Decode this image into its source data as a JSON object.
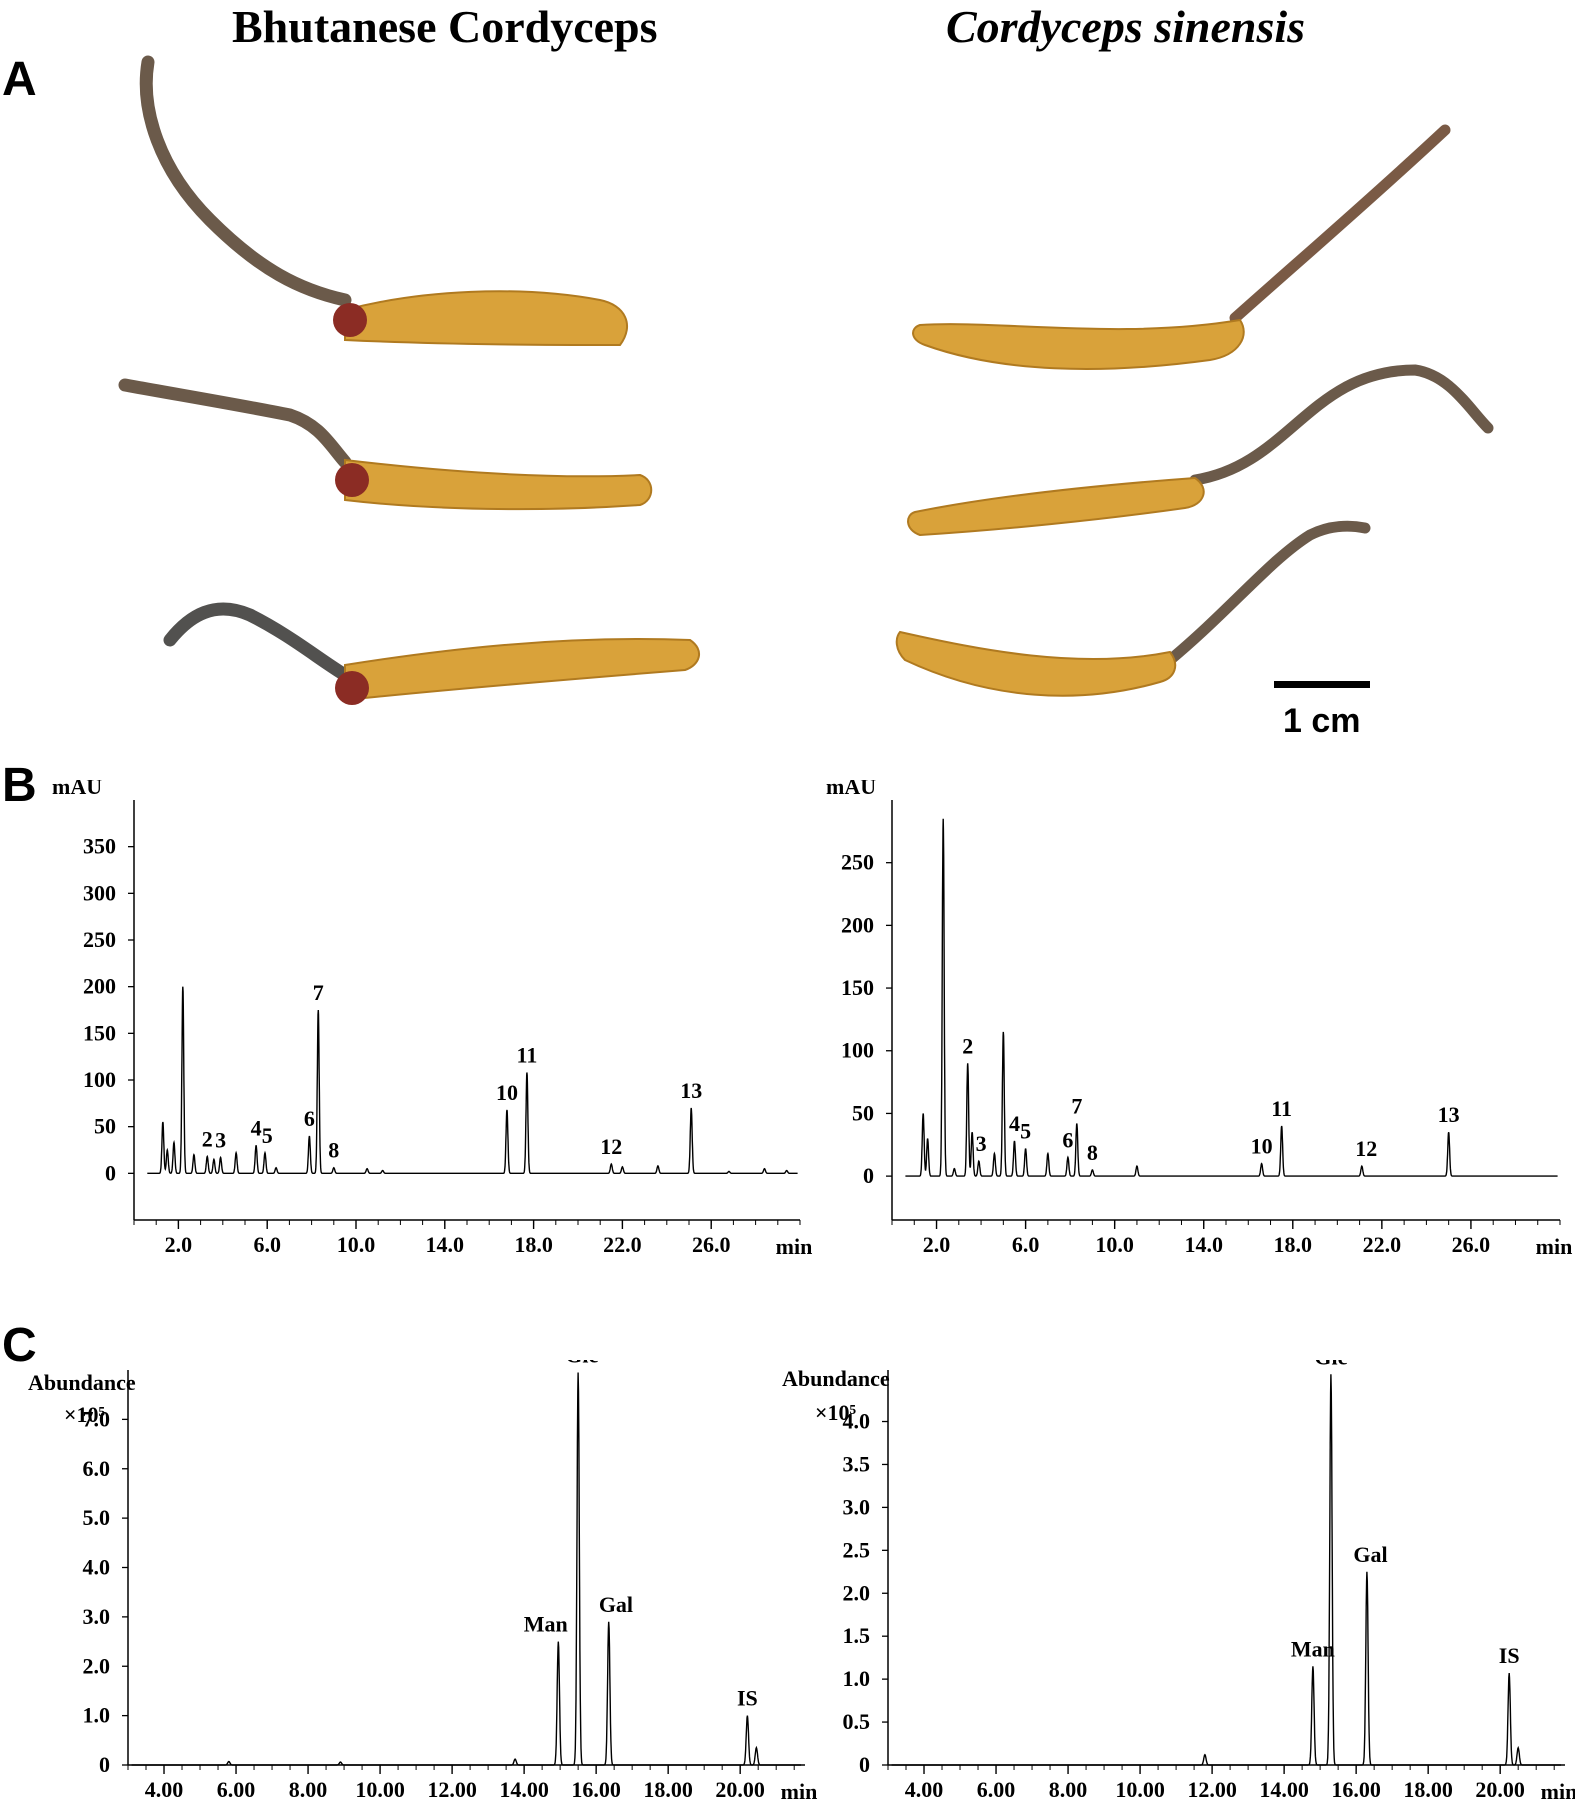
{
  "figure": {
    "panel_labels": [
      "A",
      "B",
      "C"
    ],
    "left_title": "Bhutanese Cordyceps",
    "right_title": "Cordyceps sinensis",
    "scale_bar_label": "1 cm",
    "specimen_colors": {
      "body": "#d9a23a",
      "stroma": "#6b5a4a",
      "tip": "#8b2c24"
    }
  },
  "chart_data": [
    {
      "id": "B-left",
      "type": "line",
      "ylabel": "mAU",
      "xunit": "min",
      "xlim": [
        0,
        30
      ],
      "ylim": [
        -50,
        400
      ],
      "xticks": [
        "2.0",
        "6.0",
        "10.0",
        "14.0",
        "18.0",
        "22.0",
        "26.0"
      ],
      "xtick_values": [
        2,
        6,
        10,
        14,
        18,
        22,
        26
      ],
      "yticks": [
        "0",
        "50",
        "100",
        "150",
        "200",
        "250",
        "300",
        "350"
      ],
      "ytick_values": [
        0,
        50,
        100,
        150,
        200,
        250,
        300,
        350
      ],
      "peaks": [
        [
          1.3,
          55
        ],
        [
          1.5,
          25
        ],
        [
          1.8,
          33
        ],
        [
          2.2,
          200
        ],
        [
          2.7,
          20
        ],
        [
          3.3,
          18
        ],
        [
          3.6,
          15
        ],
        [
          3.9,
          17
        ],
        [
          4.6,
          22
        ],
        [
          5.5,
          30
        ],
        [
          5.9,
          22
        ],
        [
          6.4,
          6
        ],
        [
          7.9,
          40
        ],
        [
          8.3,
          175
        ],
        [
          9.0,
          6
        ],
        [
          10.5,
          5
        ],
        [
          11.2,
          3
        ],
        [
          16.8,
          68
        ],
        [
          17.7,
          108
        ],
        [
          21.5,
          10
        ],
        [
          22.0,
          7
        ],
        [
          23.6,
          8
        ],
        [
          25.1,
          70
        ],
        [
          26.8,
          2
        ],
        [
          28.4,
          5
        ],
        [
          29.4,
          3
        ]
      ],
      "peak_labels": [
        {
          "label": "2",
          "x": 3.3,
          "y": 18
        },
        {
          "label": "3",
          "x": 3.9,
          "y": 17
        },
        {
          "label": "4",
          "x": 5.5,
          "y": 30
        },
        {
          "label": "5",
          "x": 6.0,
          "y": 22
        },
        {
          "label": "6",
          "x": 7.9,
          "y": 40
        },
        {
          "label": "7",
          "x": 8.3,
          "y": 175
        },
        {
          "label": "8",
          "x": 9.0,
          "y": 6
        },
        {
          "label": "10",
          "x": 16.8,
          "y": 68
        },
        {
          "label": "11",
          "x": 17.7,
          "y": 108
        },
        {
          "label": "12",
          "x": 21.5,
          "y": 10
        },
        {
          "label": "13",
          "x": 25.1,
          "y": 70
        }
      ]
    },
    {
      "id": "B-right",
      "type": "line",
      "ylabel": "mAU",
      "xunit": "min",
      "xlim": [
        0,
        30
      ],
      "ylim": [
        -35,
        300
      ],
      "xticks": [
        "2.0",
        "6.0",
        "10.0",
        "14.0",
        "18.0",
        "22.0",
        "26.0",
        "min"
      ],
      "xtick_values": [
        2,
        6,
        10,
        14,
        18,
        22,
        26
      ],
      "yticks": [
        "0",
        "50",
        "100",
        "150",
        "200",
        "250"
      ],
      "ytick_values": [
        0,
        50,
        100,
        150,
        200,
        250
      ],
      "peaks": [
        [
          1.4,
          50
        ],
        [
          1.6,
          30
        ],
        [
          2.3,
          285
        ],
        [
          2.8,
          6
        ],
        [
          3.4,
          90
        ],
        [
          3.6,
          35
        ],
        [
          3.9,
          12
        ],
        [
          4.6,
          18
        ],
        [
          5.0,
          115
        ],
        [
          5.5,
          28
        ],
        [
          6.0,
          22
        ],
        [
          7.0,
          18
        ],
        [
          7.9,
          15
        ],
        [
          8.3,
          42
        ],
        [
          9.0,
          5
        ],
        [
          11.0,
          8
        ],
        [
          16.6,
          10
        ],
        [
          17.5,
          40
        ],
        [
          21.1,
          8
        ],
        [
          25.0,
          35
        ]
      ],
      "peak_labels": [
        {
          "label": "2",
          "x": 3.4,
          "y": 90
        },
        {
          "label": "3",
          "x": 4.0,
          "y": 12
        },
        {
          "label": "4",
          "x": 5.5,
          "y": 28
        },
        {
          "label": "5",
          "x": 6.0,
          "y": 22
        },
        {
          "label": "6",
          "x": 7.9,
          "y": 15
        },
        {
          "label": "7",
          "x": 8.3,
          "y": 42
        },
        {
          "label": "8",
          "x": 9.0,
          "y": 5
        },
        {
          "label": "10",
          "x": 16.6,
          "y": 10
        },
        {
          "label": "11",
          "x": 17.5,
          "y": 40
        },
        {
          "label": "12",
          "x": 21.3,
          "y": 8
        },
        {
          "label": "13",
          "x": 25.0,
          "y": 35
        }
      ]
    },
    {
      "id": "C-left",
      "type": "line",
      "ylabel": "Abundance",
      "yscale_label": "×10⁵",
      "xunit": "min",
      "xlim": [
        3.0,
        21.8
      ],
      "ylim": [
        0,
        8.0
      ],
      "xticks": [
        "4.00",
        "6.00",
        "8.00",
        "10.00",
        "12.00",
        "14.00",
        "16.00",
        "18.00",
        "20.00",
        "min"
      ],
      "xtick_values": [
        4,
        6,
        8,
        10,
        12,
        14,
        16,
        18,
        20
      ],
      "yticks": [
        "0",
        "1.0",
        "2.0",
        "3.0",
        "4.0",
        "5.0",
        "6.0",
        "7.0"
      ],
      "ytick_values": [
        0,
        1,
        2,
        3,
        4,
        5,
        6,
        7
      ],
      "peaks": [
        [
          14.95,
          2.5
        ],
        [
          15.5,
          7.95
        ],
        [
          16.35,
          2.9
        ],
        [
          20.2,
          1.0
        ],
        [
          20.45,
          0.35
        ],
        [
          13.75,
          0.12
        ],
        [
          5.8,
          0.07
        ],
        [
          8.9,
          0.06
        ]
      ],
      "peak_labels": [
        {
          "label": "Man",
          "x": 14.6,
          "y": 2.5
        },
        {
          "label": "Glc",
          "x": 15.6,
          "y": 7.95
        },
        {
          "label": "Gal",
          "x": 16.55,
          "y": 2.9
        },
        {
          "label": "IS",
          "x": 20.2,
          "y": 1.0
        }
      ]
    },
    {
      "id": "C-right",
      "type": "line",
      "ylabel": "Abundance",
      "yscale_label": "×10⁵",
      "xunit": "min",
      "xlim": [
        3.0,
        21.8
      ],
      "ylim": [
        0,
        4.6
      ],
      "xticks": [
        "4.00",
        "6.00",
        "8.00",
        "10.00",
        "12.00",
        "14.00",
        "16.00",
        "18.00",
        "20.00",
        "min"
      ],
      "xtick_values": [
        4,
        6,
        8,
        10,
        12,
        14,
        16,
        18,
        20
      ],
      "yticks": [
        "0",
        "0.5",
        "1.0",
        "1.5",
        "2.0",
        "2.5",
        "3.0",
        "3.5",
        "4.0"
      ],
      "ytick_values": [
        0,
        0.5,
        1,
        1.5,
        2,
        2.5,
        3,
        3.5,
        4
      ],
      "peaks": [
        [
          14.8,
          1.15
        ],
        [
          15.3,
          4.55
        ],
        [
          16.3,
          2.25
        ],
        [
          20.25,
          1.07
        ],
        [
          20.5,
          0.2
        ],
        [
          11.8,
          0.12
        ]
      ],
      "peak_labels": [
        {
          "label": "Man",
          "x": 14.8,
          "y": 1.15
        },
        {
          "label": "Glc",
          "x": 15.3,
          "y": 4.55
        },
        {
          "label": "Gal",
          "x": 16.4,
          "y": 2.25
        },
        {
          "label": "IS",
          "x": 20.25,
          "y": 1.07
        }
      ]
    }
  ]
}
